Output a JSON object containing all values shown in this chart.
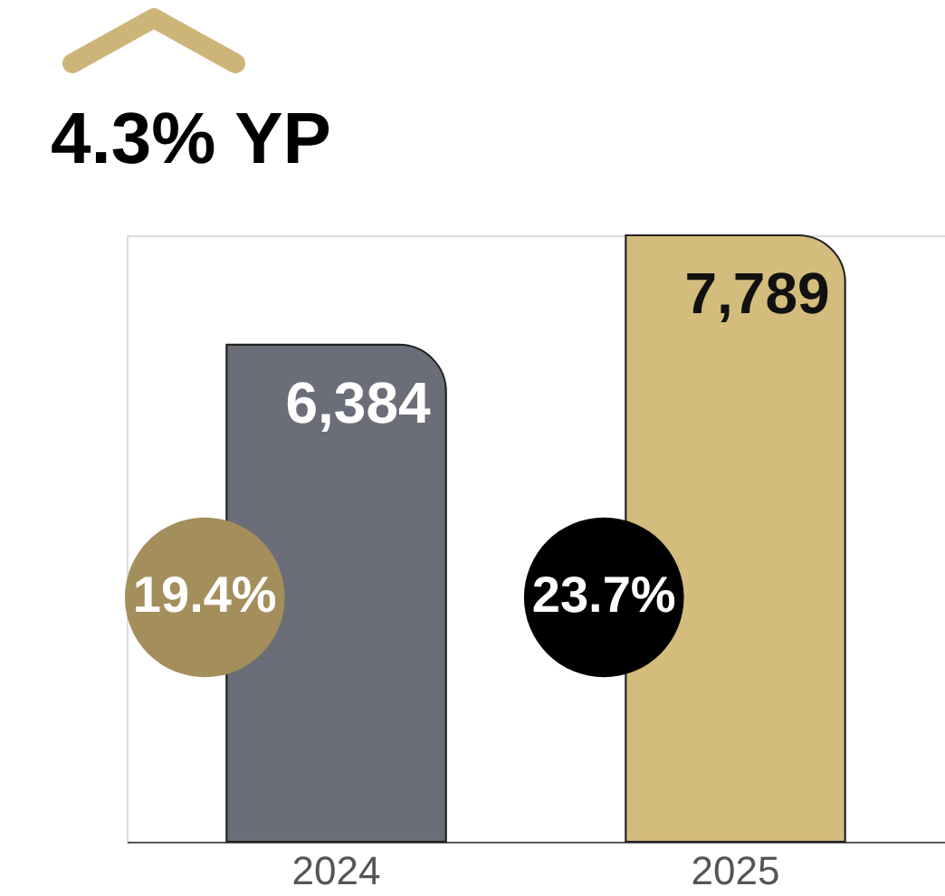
{
  "chart_data": {
    "type": "bar",
    "title": "4.3% YP",
    "categories": [
      "2024",
      "2025"
    ],
    "values": [
      6384,
      7789
    ],
    "colors": [
      "#6b6e78",
      "#d4bc7c"
    ],
    "data_labels": true,
    "value_labels": [
      "6,384",
      "7,789"
    ],
    "annotations": [
      "19.4%",
      "23.7%"
    ]
  }
}
